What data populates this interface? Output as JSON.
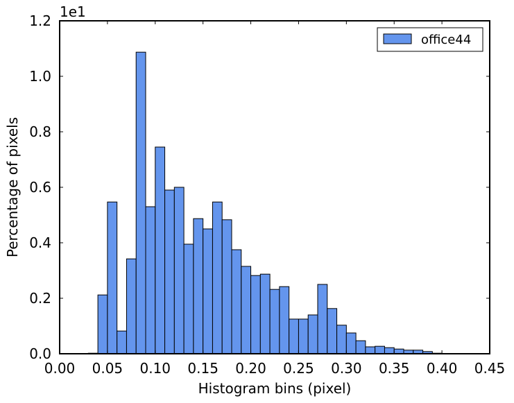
{
  "chart_data": {
    "type": "bar",
    "title": "",
    "xlabel": "Histogram bins (pixel)",
    "ylabel": "Percentage of pixels",
    "y_offset_label": "1e1",
    "xlim": [
      0.0,
      0.45
    ],
    "ylim": [
      0.0,
      1.2
    ],
    "xticks": [
      "0.00",
      "0.05",
      "0.10",
      "0.15",
      "0.20",
      "0.25",
      "0.30",
      "0.35",
      "0.40",
      "0.45"
    ],
    "yticks": [
      "0.0",
      "0.2",
      "0.4",
      "0.6",
      "0.8",
      "1.0",
      "1.2"
    ],
    "bin_width": 0.01,
    "bin_edges_start": 0.0,
    "series": [
      {
        "name": "office44",
        "color": "#6495ed",
        "values": [
          0,
          0,
          0,
          0.002,
          0.212,
          0.547,
          0.082,
          0.342,
          1.087,
          0.53,
          0.745,
          0.59,
          0.6,
          0.395,
          0.487,
          0.45,
          0.547,
          0.483,
          0.375,
          0.315,
          0.282,
          0.287,
          0.232,
          0.242,
          0.125,
          0.125,
          0.14,
          0.25,
          0.163,
          0.103,
          0.075,
          0.047,
          0.025,
          0.027,
          0.022,
          0.017,
          0.013,
          0.013,
          0.008,
          0.002,
          0.001,
          0,
          0,
          0,
          0
        ]
      }
    ],
    "legend": {
      "position": "top-right"
    },
    "grid": false
  }
}
